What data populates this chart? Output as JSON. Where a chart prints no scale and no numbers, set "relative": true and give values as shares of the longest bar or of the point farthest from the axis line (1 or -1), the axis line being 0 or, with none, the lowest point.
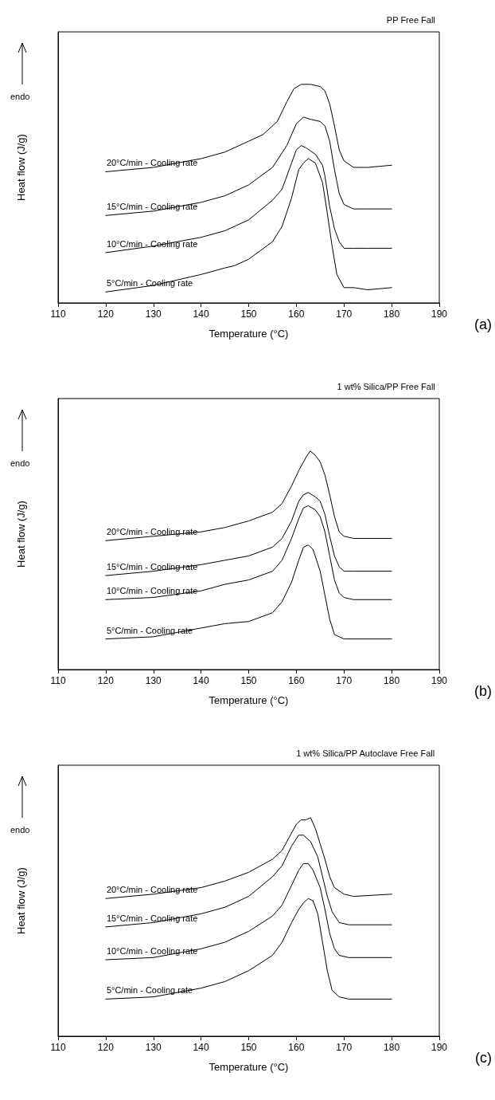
{
  "chart_data": [
    {
      "type": "line",
      "title": "PP Free Fall",
      "xlabel": "Temperature (°C)",
      "ylabel": "Heat flow (J/g)",
      "annotations": [
        "endo",
        "(a)"
      ],
      "relative": true,
      "legend": false,
      "grid": false,
      "marker": "none",
      "xlim": [
        110,
        190
      ],
      "xticks": [
        110,
        120,
        130,
        140,
        150,
        160,
        170,
        180,
        190
      ],
      "series": [
        {
          "name": "20°C/min - Cooling rate",
          "color": "#000000",
          "x": [
            120,
            130,
            140,
            145,
            150,
            153,
            156,
            158,
            159.5,
            161,
            163,
            165,
            166,
            167,
            168,
            169,
            170,
            172,
            175,
            180
          ],
          "values": [
            0.6,
            0.62,
            0.66,
            0.69,
            0.74,
            0.77,
            0.83,
            0.92,
            0.98,
            1.0,
            1.0,
            0.99,
            0.97,
            0.91,
            0.81,
            0.7,
            0.65,
            0.62,
            0.62,
            0.63
          ]
        },
        {
          "name": "15°C/min - Cooling rate",
          "color": "#000000",
          "x": [
            120,
            130,
            140,
            145,
            150,
            155,
            158,
            160,
            161.5,
            163,
            165,
            166,
            167,
            168,
            169,
            170,
            172,
            175,
            180
          ],
          "values": [
            0.4,
            0.42,
            0.46,
            0.49,
            0.54,
            0.62,
            0.72,
            0.82,
            0.85,
            0.84,
            0.83,
            0.81,
            0.74,
            0.61,
            0.5,
            0.45,
            0.43,
            0.43,
            0.43
          ]
        },
        {
          "name": "10°C/min - Cooling rate",
          "color": "#000000",
          "x": [
            120,
            130,
            140,
            145,
            150,
            155,
            157,
            159,
            160,
            161,
            162,
            164,
            165.5,
            166,
            167,
            168,
            169,
            170,
            172,
            175,
            180
          ],
          "values": [
            0.23,
            0.26,
            0.3,
            0.33,
            0.38,
            0.47,
            0.52,
            0.64,
            0.7,
            0.72,
            0.71,
            0.68,
            0.63,
            0.58,
            0.44,
            0.34,
            0.28,
            0.25,
            0.25,
            0.25,
            0.25
          ]
        },
        {
          "name": "5°C/min - Cooling rate",
          "color": "#000000",
          "x": [
            120,
            130,
            140,
            145,
            147,
            150,
            155,
            157,
            159,
            160.5,
            161.5,
            162.5,
            164,
            165.5,
            166.5,
            167.5,
            168.5,
            170,
            172,
            175,
            180
          ],
          "values": [
            0.05,
            0.08,
            0.13,
            0.16,
            0.17,
            0.2,
            0.28,
            0.35,
            0.48,
            0.61,
            0.64,
            0.66,
            0.64,
            0.55,
            0.41,
            0.26,
            0.13,
            0.07,
            0.07,
            0.06,
            0.07
          ]
        }
      ]
    },
    {
      "type": "line",
      "title": "1 wt% Silica/PP Free Fall",
      "xlabel": "Temperature (°C)",
      "ylabel": "Heat flow (J/g)",
      "annotations": [
        "endo",
        "(b)"
      ],
      "relative": true,
      "legend": false,
      "grid": false,
      "marker": "none",
      "xlim": [
        110,
        190
      ],
      "xticks": [
        110,
        120,
        130,
        140,
        150,
        160,
        170,
        180,
        190
      ],
      "series": [
        {
          "name": "20°C/min - Cooling rate",
          "color": "#000000",
          "x": [
            120,
            130,
            140,
            145,
            150,
            155,
            157,
            159,
            160.5,
            162,
            162.9,
            164,
            165,
            166,
            167,
            168,
            169,
            170,
            172,
            180
          ],
          "values": [
            0.59,
            0.61,
            0.63,
            0.65,
            0.68,
            0.72,
            0.76,
            0.84,
            0.91,
            0.97,
            1.0,
            0.98,
            0.95,
            0.89,
            0.8,
            0.7,
            0.63,
            0.61,
            0.6,
            0.6
          ]
        },
        {
          "name": "15°C/min - Cooling rate",
          "color": "#000000",
          "x": [
            120,
            130,
            140,
            145,
            150,
            155,
            157,
            159,
            160.5,
            161.5,
            162.5,
            164,
            165,
            166,
            167,
            168,
            169,
            170,
            172,
            180
          ],
          "values": [
            0.43,
            0.45,
            0.48,
            0.5,
            0.52,
            0.56,
            0.6,
            0.68,
            0.77,
            0.8,
            0.81,
            0.79,
            0.77,
            0.71,
            0.61,
            0.52,
            0.47,
            0.45,
            0.45,
            0.45
          ]
        },
        {
          "name": "10°C/min - Cooling rate",
          "color": "#000000",
          "x": [
            120,
            130,
            140,
            145,
            150,
            155,
            157,
            159,
            160.5,
            161.5,
            162.5,
            164,
            165,
            166,
            167,
            168,
            169,
            170,
            172,
            180
          ],
          "values": [
            0.32,
            0.33,
            0.36,
            0.39,
            0.41,
            0.45,
            0.5,
            0.6,
            0.69,
            0.74,
            0.75,
            0.73,
            0.7,
            0.63,
            0.52,
            0.41,
            0.35,
            0.33,
            0.32,
            0.32
          ]
        },
        {
          "name": "5°C/min - Cooling rate",
          "color": "#000000",
          "x": [
            120,
            130,
            140,
            145,
            150,
            155,
            157,
            159,
            160.5,
            161.5,
            162.5,
            163.5,
            165,
            166,
            167,
            168,
            169,
            170,
            180
          ],
          "values": [
            0.14,
            0.15,
            0.19,
            0.21,
            0.22,
            0.26,
            0.31,
            0.4,
            0.5,
            0.56,
            0.57,
            0.55,
            0.45,
            0.34,
            0.23,
            0.16,
            0.15,
            0.14,
            0.14
          ]
        }
      ]
    },
    {
      "type": "line",
      "title": "1 wt% Silica/PP Autoclave Free Fall",
      "xlabel": "Temperature (°C)",
      "ylabel": "Heat flow (J/g)",
      "annotations": [
        "endo",
        "(c)"
      ],
      "relative": true,
      "legend": false,
      "grid": false,
      "marker": "none",
      "xlim": [
        110,
        190
      ],
      "xticks": [
        110,
        120,
        130,
        140,
        150,
        160,
        170,
        180,
        190
      ],
      "series": [
        {
          "name": "20°C/min - Cooling rate",
          "color": "#000000",
          "x": [
            120,
            130,
            140,
            145,
            150,
            155,
            157,
            158.5,
            160,
            161,
            162,
            163,
            164,
            165,
            166,
            167,
            168,
            170,
            172,
            180
          ],
          "values": [
            0.63,
            0.65,
            0.68,
            0.71,
            0.75,
            0.81,
            0.85,
            0.91,
            0.97,
            0.99,
            0.99,
            1.0,
            0.95,
            0.88,
            0.81,
            0.73,
            0.68,
            0.65,
            0.64,
            0.65
          ]
        },
        {
          "name": "15°C/min - Cooling rate",
          "color": "#000000",
          "x": [
            120,
            130,
            140,
            145,
            150,
            155,
            157,
            159,
            160.5,
            161.5,
            163,
            164.5,
            165.5,
            166.5,
            167.5,
            169,
            171,
            180
          ],
          "values": [
            0.5,
            0.52,
            0.56,
            0.59,
            0.64,
            0.73,
            0.78,
            0.87,
            0.92,
            0.92,
            0.89,
            0.82,
            0.73,
            0.64,
            0.57,
            0.52,
            0.51,
            0.51
          ]
        },
        {
          "name": "10°C/min - Cooling rate",
          "color": "#000000",
          "x": [
            120,
            130,
            140,
            145,
            150,
            155,
            157,
            159,
            160.5,
            161.5,
            162.5,
            163.5,
            165,
            166,
            167,
            168,
            169,
            171,
            180
          ],
          "values": [
            0.35,
            0.36,
            0.4,
            0.43,
            0.48,
            0.55,
            0.6,
            0.69,
            0.76,
            0.79,
            0.79,
            0.76,
            0.68,
            0.58,
            0.47,
            0.4,
            0.37,
            0.36,
            0.36
          ]
        },
        {
          "name": "5°C/min - Cooling rate",
          "color": "#000000",
          "x": [
            120,
            130,
            140,
            145,
            150,
            155,
            157,
            159,
            160.5,
            161.5,
            162.5,
            163.5,
            164.5,
            165.5,
            166.5,
            167.5,
            169,
            171,
            180
          ],
          "values": [
            0.17,
            0.18,
            0.22,
            0.25,
            0.3,
            0.37,
            0.43,
            0.52,
            0.58,
            0.61,
            0.63,
            0.62,
            0.56,
            0.43,
            0.3,
            0.21,
            0.18,
            0.17,
            0.17
          ]
        }
      ]
    }
  ]
}
